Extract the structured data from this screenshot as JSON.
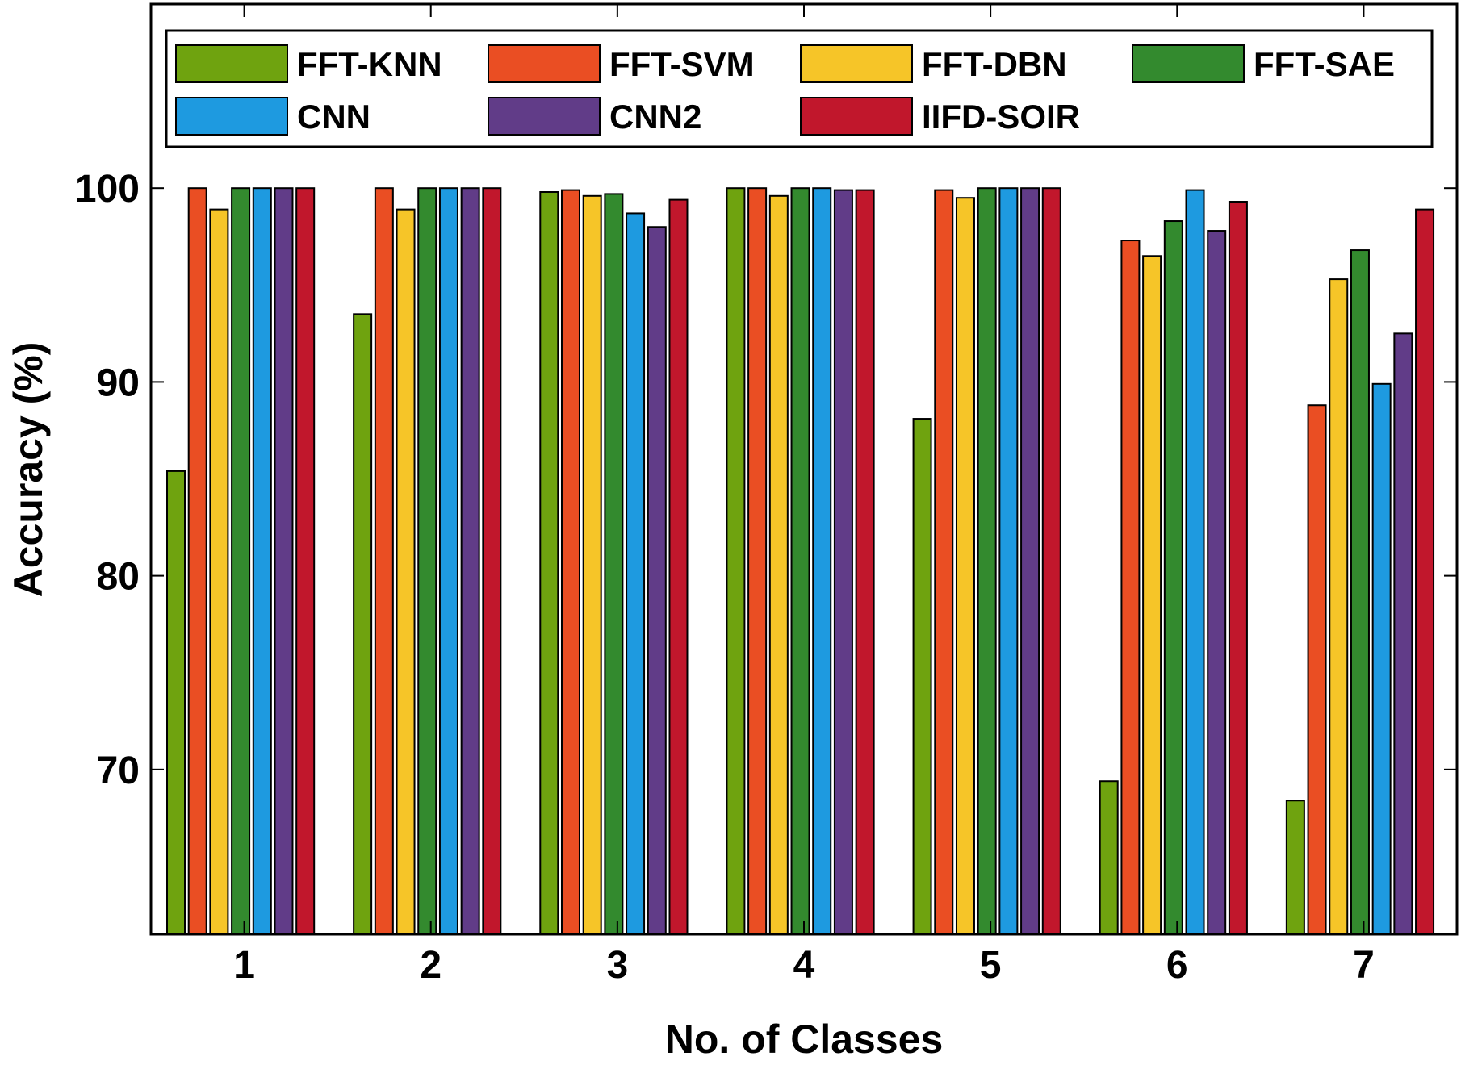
{
  "chart_data": {
    "type": "bar",
    "title": "",
    "xlabel": "No. of Classes",
    "ylabel": "Accuracy (%)",
    "ylim": [
      61.5,
      109.5
    ],
    "yticks": [
      70,
      80,
      90,
      100
    ],
    "categories": [
      "1",
      "2",
      "3",
      "4",
      "5",
      "6",
      "7"
    ],
    "grid": false,
    "legend_position": "top",
    "series": [
      {
        "name": "FFT-KNN",
        "color": "#6fa30f",
        "values": [
          85.4,
          93.5,
          99.8,
          100,
          88.1,
          69.4,
          68.4
        ]
      },
      {
        "name": "FFT-SVM",
        "color": "#ea4e23",
        "values": [
          100,
          100,
          99.9,
          100,
          99.9,
          97.3,
          88.8
        ]
      },
      {
        "name": "FFT-DBN",
        "color": "#f6c528",
        "values": [
          98.9,
          98.9,
          99.6,
          99.6,
          99.5,
          96.5,
          95.3
        ]
      },
      {
        "name": "FFT-SAE",
        "color": "#338a2e",
        "values": [
          100,
          100,
          99.7,
          100,
          100,
          98.3,
          96.8
        ]
      },
      {
        "name": "CNN",
        "color": "#1e9ae0",
        "values": [
          100,
          100,
          98.7,
          100,
          100,
          99.9,
          89.9
        ]
      },
      {
        "name": "CNN2",
        "color": "#613c88",
        "values": [
          100,
          100,
          98.0,
          99.9,
          100,
          97.8,
          92.5
        ]
      },
      {
        "name": "IIFD-SOIR",
        "color": "#c1172c",
        "values": [
          100,
          100,
          99.4,
          99.9,
          100,
          99.3,
          98.9
        ]
      }
    ]
  }
}
